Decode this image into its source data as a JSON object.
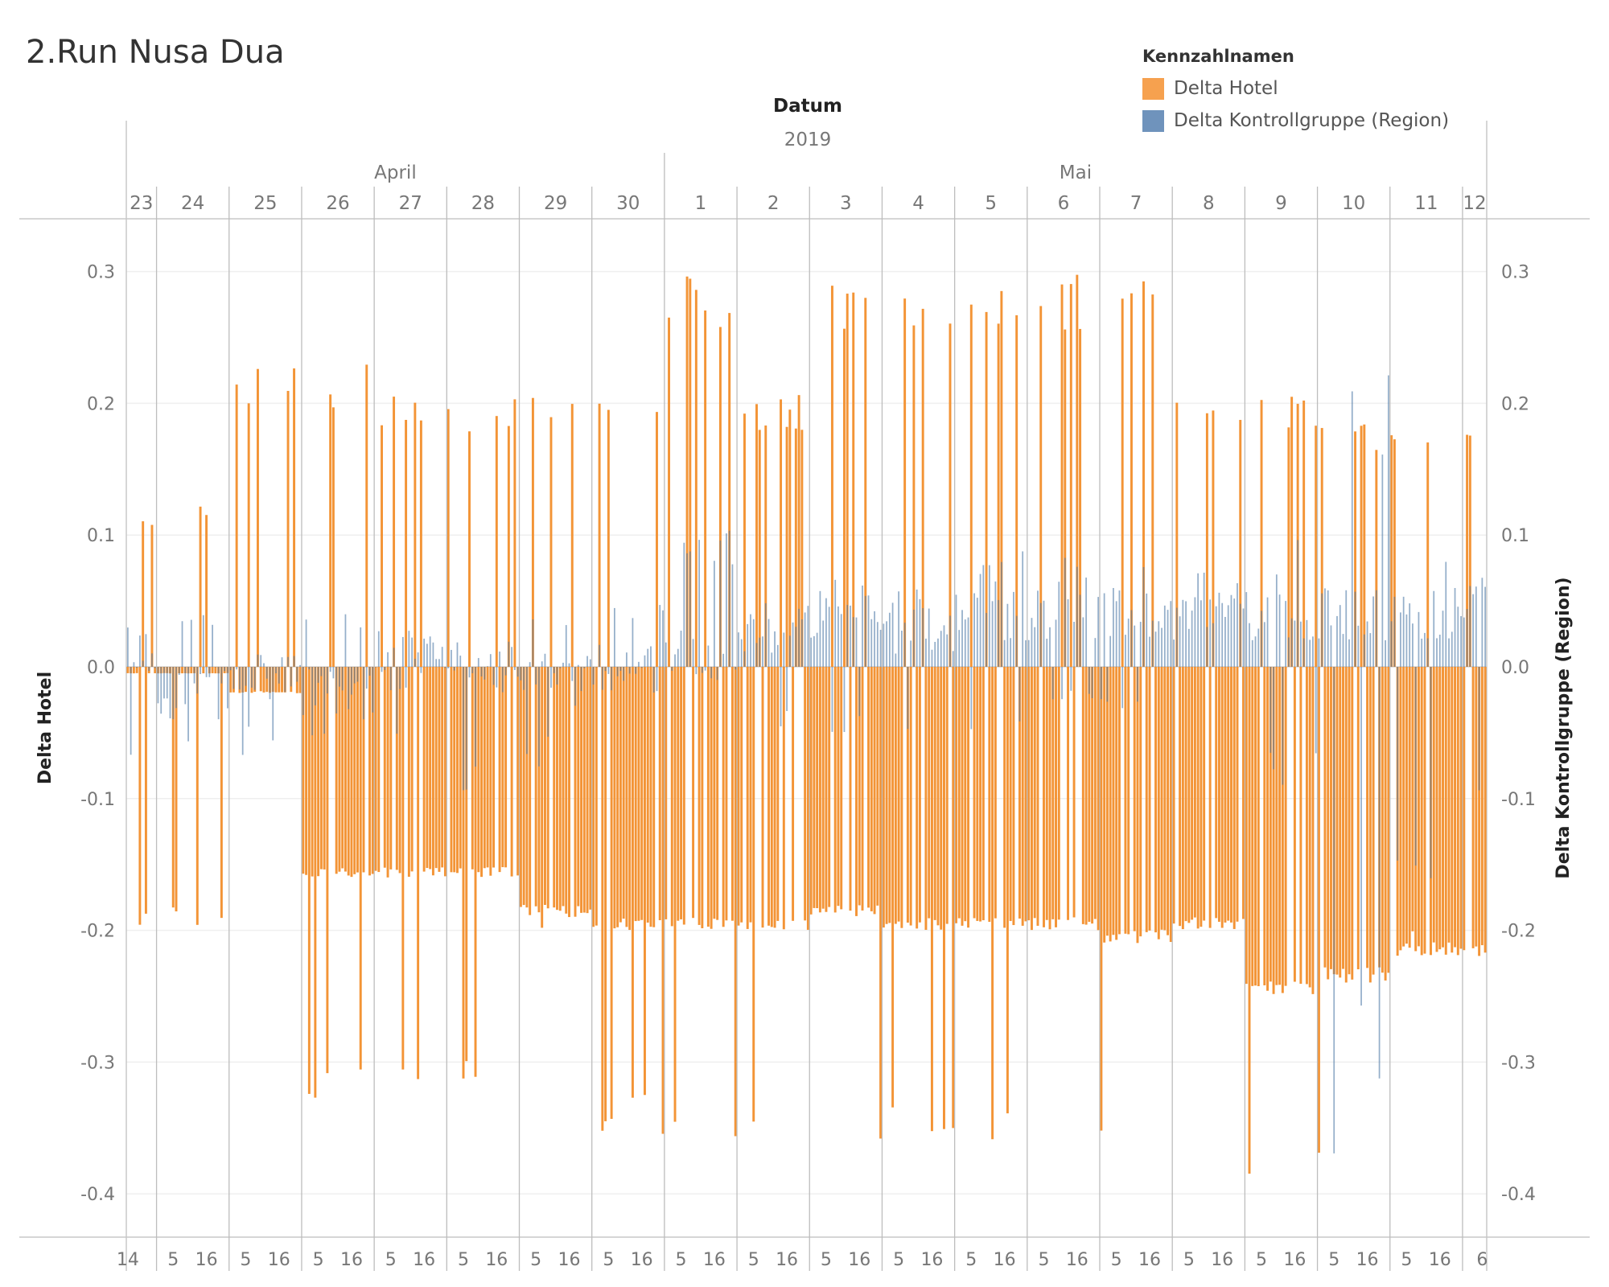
{
  "title": "2.Run Nusa Dua",
  "legend": {
    "title": "Kennzahlnamen",
    "items": [
      {
        "label": "Delta Hotel",
        "color": "#F28E2B"
      },
      {
        "label": "Delta Kontrollgruppe (Region)",
        "color": "#4E79A7"
      }
    ]
  },
  "chart_data": {
    "type": "bar",
    "x_title": "Datum",
    "y_left_label": "Delta Hotel",
    "y_right_label": "Delta Kontrollgruppe (Region)",
    "ylim": [
      -0.43,
      0.33
    ],
    "y_ticks": [
      0.3,
      0.2,
      0.1,
      0.0,
      -0.1,
      -0.2,
      -0.3,
      -0.4
    ],
    "y_tick_labels": [
      "0.3",
      "0.2",
      "0.1",
      "0.0",
      "-0.1",
      "-0.2",
      "-0.3",
      "-0.4"
    ],
    "year": "2019",
    "months": [
      "April",
      "Mai"
    ],
    "days": [
      {
        "label": "23",
        "month": "April",
        "start_hour": 14,
        "hour_ticks": [
          "14"
        ]
      },
      {
        "label": "24",
        "month": "April",
        "hour_ticks": [
          "5",
          "16"
        ]
      },
      {
        "label": "25",
        "month": "April",
        "hour_ticks": [
          "5",
          "16"
        ]
      },
      {
        "label": "26",
        "month": "April",
        "hour_ticks": [
          "5",
          "16"
        ]
      },
      {
        "label": "27",
        "month": "April",
        "hour_ticks": [
          "5",
          "16"
        ]
      },
      {
        "label": "28",
        "month": "April",
        "hour_ticks": [
          "5",
          "16"
        ]
      },
      {
        "label": "29",
        "month": "April",
        "hour_ticks": [
          "5",
          "16"
        ]
      },
      {
        "label": "30",
        "month": "April",
        "hour_ticks": [
          "5",
          "16"
        ]
      },
      {
        "label": "1",
        "month": "Mai",
        "hour_ticks": [
          "5",
          "16"
        ]
      },
      {
        "label": "2",
        "month": "Mai",
        "hour_ticks": [
          "5",
          "16"
        ]
      },
      {
        "label": "3",
        "month": "Mai",
        "hour_ticks": [
          "5",
          "16"
        ]
      },
      {
        "label": "4",
        "month": "Mai",
        "hour_ticks": [
          "5",
          "16"
        ]
      },
      {
        "label": "5",
        "month": "Mai",
        "hour_ticks": [
          "5",
          "16"
        ]
      },
      {
        "label": "6",
        "month": "Mai",
        "hour_ticks": [
          "5",
          "16"
        ]
      },
      {
        "label": "7",
        "month": "Mai",
        "hour_ticks": [
          "5",
          "16"
        ]
      },
      {
        "label": "8",
        "month": "Mai",
        "hour_ticks": [
          "5",
          "16"
        ]
      },
      {
        "label": "9",
        "month": "Mai",
        "hour_ticks": [
          "5",
          "16"
        ]
      },
      {
        "label": "10",
        "month": "Mai",
        "hour_ticks": [
          "5",
          "16"
        ]
      },
      {
        "label": "11",
        "month": "Mai",
        "hour_ticks": [
          "5",
          "16"
        ]
      },
      {
        "label": "12",
        "month": "Mai",
        "end_hour": 8,
        "hour_ticks": [
          "6"
        ]
      }
    ],
    "series": [
      {
        "name": "Delta Hotel",
        "color": "#F28E2B",
        "daily_profile": [
          {
            "day": "23",
            "typical_low": -0.005,
            "spike_high": 0.12,
            "spike_low": -0.2
          },
          {
            "day": "24",
            "typical_low": -0.005,
            "spike_high": 0.13,
            "spike_low": -0.2
          },
          {
            "day": "25",
            "typical_low": -0.02,
            "spike_high": 0.23,
            "spike_low": -0.02
          },
          {
            "day": "26",
            "typical_low": -0.16,
            "spike_high": 0.23,
            "spike_low": -0.33
          },
          {
            "day": "27",
            "typical_low": -0.16,
            "spike_high": 0.21,
            "spike_low": -0.33
          },
          {
            "day": "28",
            "typical_low": -0.16,
            "spike_high": 0.21,
            "spike_low": -0.33
          },
          {
            "day": "29",
            "typical_low": -0.19,
            "spike_high": 0.21,
            "spike_low": -0.2
          },
          {
            "day": "30",
            "typical_low": -0.2,
            "spike_high": 0.21,
            "spike_low": -0.36
          },
          {
            "day": "1",
            "typical_low": -0.2,
            "spike_high": 0.3,
            "spike_low": -0.36
          },
          {
            "day": "2",
            "typical_low": -0.2,
            "spike_high": 0.21,
            "spike_low": -0.36
          },
          {
            "day": "3",
            "typical_low": -0.19,
            "spike_high": 0.3,
            "spike_low": -0.36
          },
          {
            "day": "4",
            "typical_low": -0.2,
            "spike_high": 0.3,
            "spike_low": -0.36
          },
          {
            "day": "5",
            "typical_low": -0.2,
            "spike_high": 0.3,
            "spike_low": -0.36
          },
          {
            "day": "6",
            "typical_low": -0.2,
            "spike_high": 0.3,
            "spike_low": -0.36
          },
          {
            "day": "7",
            "typical_low": -0.21,
            "spike_high": 0.3,
            "spike_low": -0.36
          },
          {
            "day": "8",
            "typical_low": -0.2,
            "spike_high": 0.21,
            "spike_low": -0.36
          },
          {
            "day": "9",
            "typical_low": -0.25,
            "spike_high": 0.21,
            "spike_low": -0.4
          },
          {
            "day": "10",
            "typical_low": -0.24,
            "spike_high": 0.19,
            "spike_low": -0.37
          },
          {
            "day": "11",
            "typical_low": -0.22,
            "spike_high": 0.19,
            "spike_low": -0.22
          },
          {
            "day": "12",
            "typical_low": -0.22,
            "spike_high": 0.19,
            "spike_low": -0.22
          }
        ]
      },
      {
        "name": "Delta Kontrollgruppe (Region)",
        "color": "#4E79A7",
        "daily_profile": [
          {
            "day": "23",
            "typical": 0.01,
            "max": 0.02,
            "min": -0.07
          },
          {
            "day": "24",
            "typical": -0.02,
            "max": 0.04,
            "min": -0.07
          },
          {
            "day": "25",
            "typical": -0.01,
            "max": 0.03,
            "min": -0.07
          },
          {
            "day": "26",
            "typical": -0.02,
            "max": 0.04,
            "min": -0.08
          },
          {
            "day": "27",
            "typical": 0.0,
            "max": 0.03,
            "min": -0.08
          },
          {
            "day": "28",
            "typical": 0.0,
            "max": 0.05,
            "min": -0.1
          },
          {
            "day": "29",
            "typical": -0.01,
            "max": 0.04,
            "min": -0.08
          },
          {
            "day": "30",
            "typical": 0.0,
            "max": 0.05,
            "min": -0.06
          },
          {
            "day": "1",
            "typical": 0.01,
            "max": 0.11,
            "min": -0.06
          },
          {
            "day": "2",
            "typical": 0.03,
            "max": 0.06,
            "min": -0.05
          },
          {
            "day": "3",
            "typical": 0.04,
            "max": 0.07,
            "min": -0.05
          },
          {
            "day": "4",
            "typical": 0.03,
            "max": 0.06,
            "min": -0.05
          },
          {
            "day": "5",
            "typical": 0.04,
            "max": 0.09,
            "min": -0.05
          },
          {
            "day": "6",
            "typical": 0.04,
            "max": 0.09,
            "min": -0.03
          },
          {
            "day": "7",
            "typical": 0.04,
            "max": 0.1,
            "min": -0.04
          },
          {
            "day": "8",
            "typical": 0.04,
            "max": 0.09,
            "min": -0.04
          },
          {
            "day": "9",
            "typical": 0.04,
            "max": 0.1,
            "min": -0.1
          },
          {
            "day": "10",
            "typical": 0.04,
            "max": 0.23,
            "min": -0.37
          },
          {
            "day": "11",
            "typical": 0.04,
            "max": 0.08,
            "min": -0.17
          },
          {
            "day": "12",
            "typical": 0.05,
            "max": 0.07,
            "min": -0.13
          }
        ]
      }
    ]
  }
}
